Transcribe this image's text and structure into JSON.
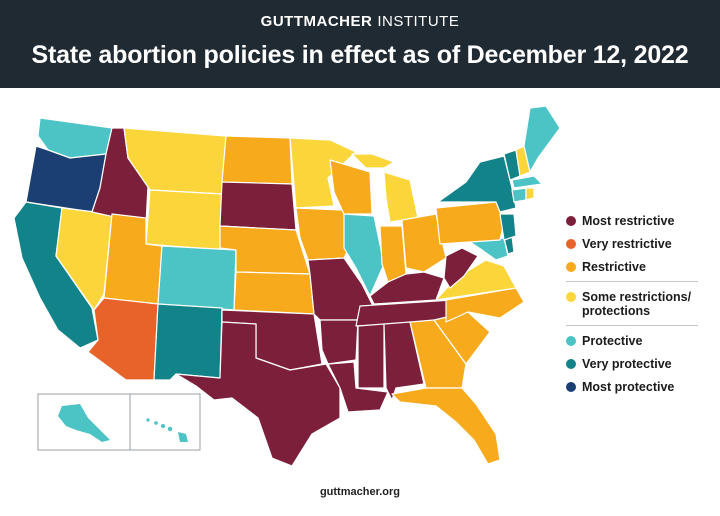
{
  "header": {
    "brand_bold": "GUTTMACHER",
    "brand_rest": "INSTITUTE",
    "title": "State abortion policies in effect as of December 12, 2022"
  },
  "colors": {
    "most_restrictive": "#7c1f3b",
    "very_restrictive": "#e8632a",
    "restrictive": "#f6aa1c",
    "some_restrictions": "#fbd63a",
    "protective": "#4cc3c5",
    "very_protective": "#13838a",
    "most_protective": "#1b3f72"
  },
  "legend": [
    {
      "label": "Most restrictive",
      "color": "#7c1f3b"
    },
    {
      "label": "Very restrictive",
      "color": "#e8632a"
    },
    {
      "label": "Restrictive",
      "color": "#f6aa1c"
    },
    {
      "label": "Some restrictions/ protections",
      "color": "#fbd63a"
    },
    {
      "label": "Protective",
      "color": "#4cc3c5"
    },
    {
      "label": "Very protective",
      "color": "#13838a"
    },
    {
      "label": "Most protective",
      "color": "#1b3f72"
    }
  ],
  "footer": {
    "url": "guttmacher.org"
  }
}
